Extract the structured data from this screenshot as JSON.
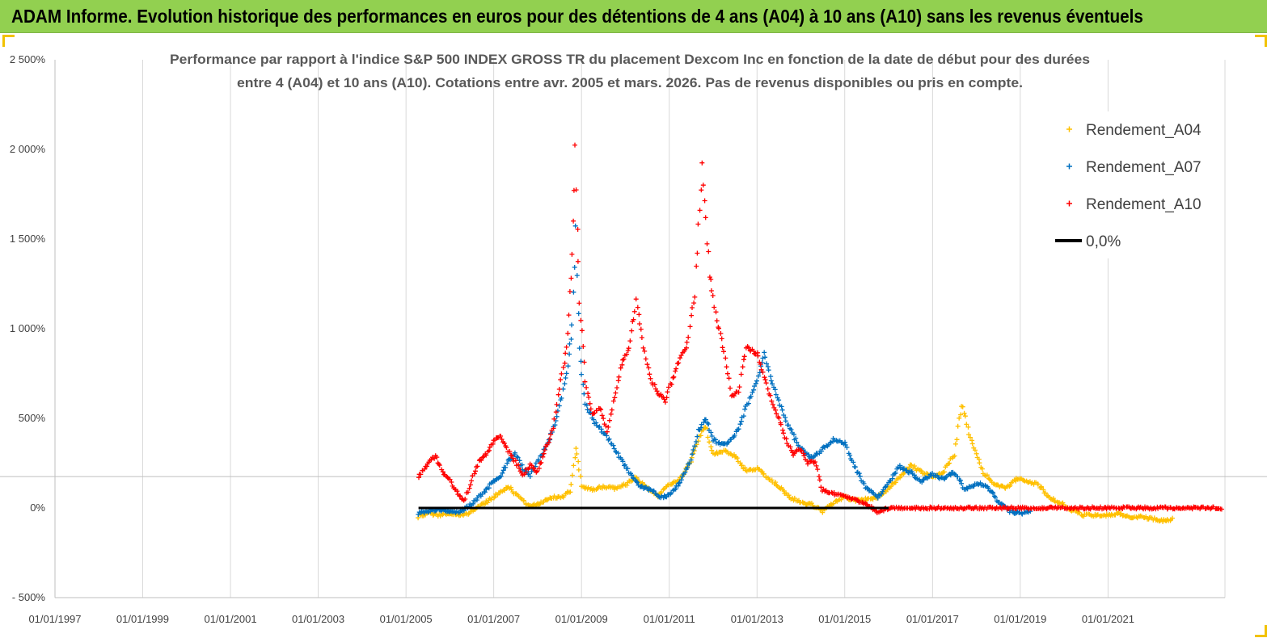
{
  "page": {
    "banner_title": "ADAM Informe. Evolution historique des performances en euros pour des détentions de 4 ans (A04) à 10 ans (A10) sans les revenus éventuels",
    "banner_color": "#92d050"
  },
  "chart_data": {
    "type": "scatter",
    "title_line1": "Performance par rapport à l'indice S&P 500 INDEX GROSS TR  du placement Dexcom Inc en fonction de la date de début pour des durées",
    "title_line2": "entre 4 (A04) et 10 ans (A10). Cotations entre avr. 2005 et mars. 2026.  Pas de revenus disponibles ou pris en compte.",
    "ylim": [
      -500,
      2500
    ],
    "xlim": [
      "1997-01-01",
      "2023-09-01"
    ],
    "y_ticks": [
      {
        "value": 2500,
        "label": "2 500%"
      },
      {
        "value": 2000,
        "label": "2 000%"
      },
      {
        "value": 1500,
        "label": "1 500%"
      },
      {
        "value": 1000,
        "label": "1 000%"
      },
      {
        "value": 500,
        "label": "500%"
      },
      {
        "value": 0,
        "label": "0%"
      },
      {
        "value": -500,
        "label": "- 500%"
      }
    ],
    "x_ticks": [
      {
        "date": "1997-01-01",
        "label": "01/01/1997"
      },
      {
        "date": "1999-01-01",
        "label": "01/01/1999"
      },
      {
        "date": "2001-01-01",
        "label": "01/01/2001"
      },
      {
        "date": "2003-01-01",
        "label": "01/01/2003"
      },
      {
        "date": "2005-01-01",
        "label": "01/01/2005"
      },
      {
        "date": "2007-01-01",
        "label": "01/01/2007"
      },
      {
        "date": "2009-01-01",
        "label": "01/01/2009"
      },
      {
        "date": "2011-01-01",
        "label": "01/01/2011"
      },
      {
        "date": "2013-01-01",
        "label": "01/01/2013"
      },
      {
        "date": "2015-01-01",
        "label": "01/01/2015"
      },
      {
        "date": "2017-01-01",
        "label": "01/01/2017"
      },
      {
        "date": "2019-01-01",
        "label": "01/01/2019"
      },
      {
        "date": "2021-01-01",
        "label": "01/01/2021"
      }
    ],
    "reference_line": {
      "y": 175
    },
    "legend": {
      "placement": "top-right"
    },
    "series": [
      {
        "name": "Rendement_A04",
        "color": "#ffc000",
        "marker": "+",
        "points": [
          [
            "2005-04-15",
            -50
          ],
          [
            "2005-07-01",
            -30
          ],
          [
            "2005-10-01",
            -40
          ],
          [
            "2006-01-01",
            -30
          ],
          [
            "2006-04-01",
            -45
          ],
          [
            "2006-07-01",
            -20
          ],
          [
            "2006-10-01",
            20
          ],
          [
            "2007-01-01",
            60
          ],
          [
            "2007-03-01",
            90
          ],
          [
            "2007-05-01",
            120
          ],
          [
            "2007-07-01",
            80
          ],
          [
            "2007-09-01",
            40
          ],
          [
            "2007-11-01",
            10
          ],
          [
            "2008-01-01",
            20
          ],
          [
            "2008-03-01",
            40
          ],
          [
            "2008-05-01",
            60
          ],
          [
            "2008-08-01",
            60
          ],
          [
            "2008-10-01",
            100
          ],
          [
            "2008-11-15",
            330
          ],
          [
            "2009-01-01",
            120
          ],
          [
            "2009-04-01",
            100
          ],
          [
            "2009-07-01",
            120
          ],
          [
            "2009-10-01",
            110
          ],
          [
            "2010-01-01",
            130
          ],
          [
            "2010-04-01",
            170
          ],
          [
            "2010-07-01",
            110
          ],
          [
            "2010-10-01",
            70
          ],
          [
            "2011-01-01",
            130
          ],
          [
            "2011-04-01",
            160
          ],
          [
            "2011-07-01",
            260
          ],
          [
            "2011-09-01",
            380
          ],
          [
            "2011-11-01",
            460
          ],
          [
            "2012-01-01",
            300
          ],
          [
            "2012-04-01",
            320
          ],
          [
            "2012-07-01",
            290
          ],
          [
            "2012-10-01",
            210
          ],
          [
            "2013-01-01",
            220
          ],
          [
            "2013-04-01",
            170
          ],
          [
            "2013-07-01",
            120
          ],
          [
            "2013-10-01",
            60
          ],
          [
            "2014-01-01",
            30
          ],
          [
            "2014-04-01",
            20
          ],
          [
            "2014-07-01",
            -20
          ],
          [
            "2014-10-01",
            30
          ],
          [
            "2015-01-01",
            60
          ],
          [
            "2015-04-01",
            40
          ],
          [
            "2015-07-01",
            50
          ],
          [
            "2015-10-01",
            60
          ],
          [
            "2016-01-01",
            110
          ],
          [
            "2016-04-01",
            170
          ],
          [
            "2016-07-01",
            240
          ],
          [
            "2016-10-01",
            200
          ],
          [
            "2017-01-01",
            170
          ],
          [
            "2017-04-01",
            200
          ],
          [
            "2017-07-01",
            300
          ],
          [
            "2017-09-01",
            580
          ],
          [
            "2017-11-01",
            420
          ],
          [
            "2018-01-01",
            300
          ],
          [
            "2018-03-01",
            200
          ],
          [
            "2018-06-01",
            130
          ],
          [
            "2018-09-01",
            110
          ],
          [
            "2018-12-01",
            160
          ],
          [
            "2019-03-01",
            150
          ],
          [
            "2019-06-01",
            130
          ],
          [
            "2019-09-01",
            60
          ],
          [
            "2019-12-01",
            30
          ],
          [
            "2020-03-01",
            -10
          ],
          [
            "2020-06-01",
            -40
          ],
          [
            "2020-09-01",
            -40
          ],
          [
            "2021-01-01",
            -40
          ],
          [
            "2021-04-01",
            -30
          ],
          [
            "2021-07-01",
            -50
          ],
          [
            "2021-10-01",
            -50
          ],
          [
            "2022-01-01",
            -60
          ],
          [
            "2022-04-01",
            -70
          ],
          [
            "2022-07-01",
            -60
          ]
        ]
      },
      {
        "name": "Rendement_A07",
        "color": "#0070c0",
        "marker": "+",
        "points": [
          [
            "2005-04-15",
            -30
          ],
          [
            "2005-07-01",
            -20
          ],
          [
            "2005-10-01",
            -10
          ],
          [
            "2006-01-01",
            -20
          ],
          [
            "2006-04-01",
            -20
          ],
          [
            "2006-07-01",
            20
          ],
          [
            "2006-10-01",
            80
          ],
          [
            "2007-01-01",
            150
          ],
          [
            "2007-03-01",
            180
          ],
          [
            "2007-05-01",
            260
          ],
          [
            "2007-07-01",
            300
          ],
          [
            "2007-09-01",
            220
          ],
          [
            "2007-11-01",
            180
          ],
          [
            "2008-01-01",
            260
          ],
          [
            "2008-03-01",
            330
          ],
          [
            "2008-05-01",
            420
          ],
          [
            "2008-07-01",
            560
          ],
          [
            "2008-09-01",
            760
          ],
          [
            "2008-10-15",
            1000
          ],
          [
            "2008-11-15",
            1550
          ],
          [
            "2008-12-15",
            880
          ],
          [
            "2009-02-01",
            580
          ],
          [
            "2009-05-01",
            470
          ],
          [
            "2009-08-01",
            400
          ],
          [
            "2009-11-01",
            300
          ],
          [
            "2010-02-01",
            200
          ],
          [
            "2010-05-01",
            120
          ],
          [
            "2010-08-01",
            100
          ],
          [
            "2010-11-01",
            60
          ],
          [
            "2011-01-01",
            70
          ],
          [
            "2011-04-01",
            140
          ],
          [
            "2011-07-01",
            270
          ],
          [
            "2011-09-01",
            430
          ],
          [
            "2011-11-01",
            500
          ],
          [
            "2012-01-01",
            380
          ],
          [
            "2012-04-01",
            350
          ],
          [
            "2012-07-01",
            400
          ],
          [
            "2012-10-01",
            560
          ],
          [
            "2013-01-01",
            720
          ],
          [
            "2013-03-01",
            860
          ],
          [
            "2013-05-01",
            720
          ],
          [
            "2013-07-01",
            590
          ],
          [
            "2013-10-01",
            440
          ],
          [
            "2014-01-01",
            330
          ],
          [
            "2014-04-01",
            280
          ],
          [
            "2014-07-01",
            330
          ],
          [
            "2014-10-01",
            380
          ],
          [
            "2015-01-01",
            360
          ],
          [
            "2015-04-01",
            220
          ],
          [
            "2015-07-01",
            110
          ],
          [
            "2015-10-01",
            60
          ],
          [
            "2016-01-01",
            140
          ],
          [
            "2016-04-01",
            230
          ],
          [
            "2016-07-01",
            200
          ],
          [
            "2016-10-01",
            150
          ],
          [
            "2017-01-01",
            190
          ],
          [
            "2017-04-01",
            160
          ],
          [
            "2017-07-01",
            200
          ],
          [
            "2017-10-01",
            100
          ],
          [
            "2018-01-01",
            140
          ],
          [
            "2018-04-01",
            120
          ],
          [
            "2018-07-01",
            40
          ],
          [
            "2018-10-01",
            -20
          ],
          [
            "2019-01-01",
            -30
          ],
          [
            "2019-04-01",
            -20
          ]
        ]
      },
      {
        "name": "Rendement_A10",
        "color": "#ff0000",
        "marker": "+",
        "points": [
          [
            "2005-04-15",
            170
          ],
          [
            "2005-07-01",
            250
          ],
          [
            "2005-09-01",
            290
          ],
          [
            "2005-11-01",
            200
          ],
          [
            "2006-01-01",
            150
          ],
          [
            "2006-03-01",
            90
          ],
          [
            "2006-05-01",
            40
          ],
          [
            "2006-07-01",
            150
          ],
          [
            "2006-09-01",
            260
          ],
          [
            "2006-11-01",
            300
          ],
          [
            "2007-01-01",
            380
          ],
          [
            "2007-03-01",
            400
          ],
          [
            "2007-05-01",
            320
          ],
          [
            "2007-07-01",
            260
          ],
          [
            "2007-09-01",
            180
          ],
          [
            "2007-11-01",
            240
          ],
          [
            "2008-01-01",
            200
          ],
          [
            "2008-03-01",
            320
          ],
          [
            "2008-05-01",
            420
          ],
          [
            "2008-07-01",
            660
          ],
          [
            "2008-09-01",
            900
          ],
          [
            "2008-10-15",
            1400
          ],
          [
            "2008-11-10",
            2000
          ],
          [
            "2008-12-15",
            1150
          ],
          [
            "2009-02-01",
            700
          ],
          [
            "2009-04-01",
            520
          ],
          [
            "2009-06-01",
            560
          ],
          [
            "2009-08-01",
            430
          ],
          [
            "2009-10-01",
            620
          ],
          [
            "2009-12-01",
            800
          ],
          [
            "2010-02-01",
            900
          ],
          [
            "2010-04-01",
            1150
          ],
          [
            "2010-06-01",
            900
          ],
          [
            "2010-08-01",
            720
          ],
          [
            "2010-10-01",
            640
          ],
          [
            "2010-12-01",
            600
          ],
          [
            "2011-03-01",
            780
          ],
          [
            "2011-06-01",
            920
          ],
          [
            "2011-08-01",
            1200
          ],
          [
            "2011-10-01",
            1900
          ],
          [
            "2011-12-01",
            1300
          ],
          [
            "2012-02-01",
            1050
          ],
          [
            "2012-04-01",
            880
          ],
          [
            "2012-06-01",
            620
          ],
          [
            "2012-08-01",
            650
          ],
          [
            "2012-10-01",
            900
          ],
          [
            "2013-01-01",
            860
          ],
          [
            "2013-03-01",
            740
          ],
          [
            "2013-05-01",
            600
          ],
          [
            "2013-07-01",
            500
          ],
          [
            "2013-09-01",
            380
          ],
          [
            "2013-11-01",
            300
          ],
          [
            "2014-01-01",
            330
          ],
          [
            "2014-03-01",
            250
          ],
          [
            "2014-05-01",
            260
          ],
          [
            "2014-07-01",
            100
          ],
          [
            "2014-10-01",
            80
          ],
          [
            "2015-01-01",
            60
          ],
          [
            "2015-04-01",
            50
          ],
          [
            "2015-07-01",
            20
          ],
          [
            "2015-10-01",
            -20
          ],
          [
            "2016-01-01",
            0
          ],
          [
            "2016-07-01",
            0
          ],
          [
            "2017-01-01",
            0
          ],
          [
            "2017-07-01",
            0
          ],
          [
            "2018-01-01",
            0
          ],
          [
            "2018-07-01",
            0
          ],
          [
            "2019-01-01",
            0
          ],
          [
            "2019-07-01",
            0
          ],
          [
            "2020-01-01",
            0
          ],
          [
            "2020-07-01",
            0
          ],
          [
            "2021-01-01",
            0
          ],
          [
            "2021-07-01",
            0
          ],
          [
            "2022-01-01",
            0
          ],
          [
            "2022-07-01",
            0
          ],
          [
            "2023-01-01",
            0
          ],
          [
            "2023-08-15",
            0
          ]
        ]
      },
      {
        "name": "0,0%",
        "color": "#000000",
        "marker": "line",
        "points": [
          [
            "2005-04-15",
            0
          ],
          [
            "2016-01-01",
            0
          ]
        ]
      }
    ]
  }
}
